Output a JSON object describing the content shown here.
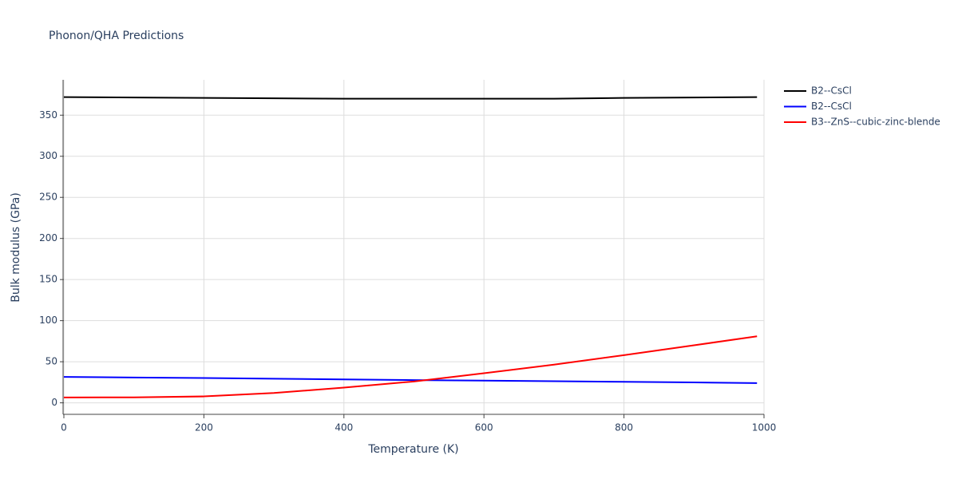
{
  "chart_data": {
    "type": "line",
    "title": "Phonon/QHA Predictions",
    "x_label": "Temperature (K)",
    "y_label": "Bulk modulus (GPa)",
    "x": [
      0,
      100,
      200,
      300,
      400,
      500,
      600,
      700,
      800,
      900,
      990
    ],
    "series": [
      {
        "name": "B2--CsCl",
        "color": "#000000",
        "values": [
          372,
          371.5,
          371,
          370.5,
          370,
          370,
          370,
          370,
          371,
          371.5,
          372
        ]
      },
      {
        "name": "B2--CsCl",
        "color": "#0000ff",
        "values": [
          31.5,
          30.8,
          30.2,
          29.3,
          28.5,
          27.7,
          27,
          26.3,
          25.6,
          24.8,
          24
        ]
      },
      {
        "name": "B3--ZnS--cubic-zinc-blende",
        "color": "#ff0000",
        "values": [
          6.5,
          6.7,
          7.8,
          12,
          18.5,
          26,
          36,
          46.5,
          58,
          70,
          81
        ]
      }
    ],
    "xlim": [
      0,
      1000
    ],
    "xticks": [
      0,
      200,
      400,
      600,
      800,
      1000
    ],
    "ylim": [
      -14,
      393
    ],
    "yticks": [
      0,
      50,
      100,
      150,
      200,
      250,
      300,
      350
    ],
    "grid": true,
    "legend": "right"
  }
}
